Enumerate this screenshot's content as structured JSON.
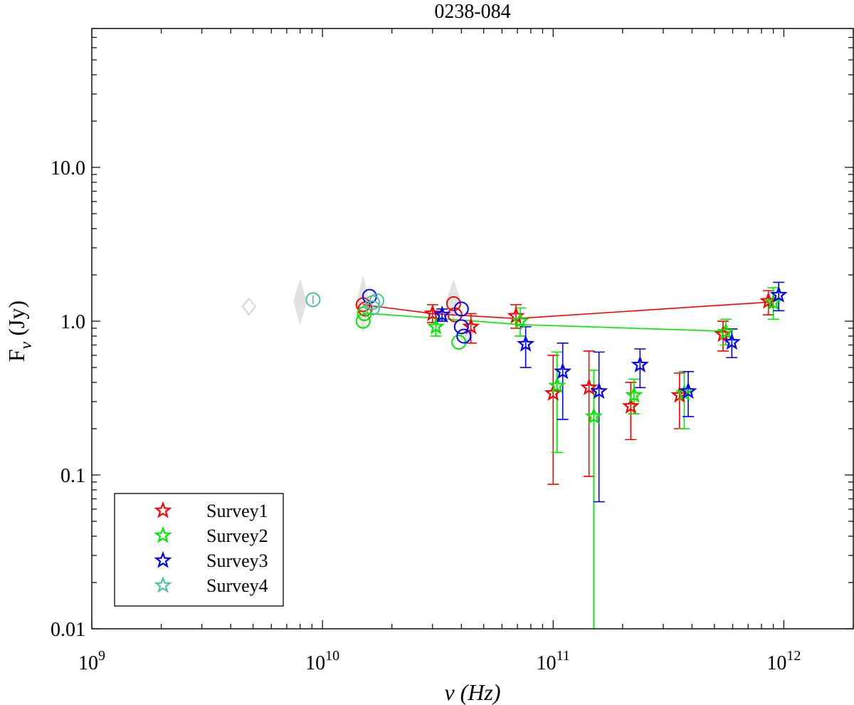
{
  "chart_data": {
    "type": "scatter",
    "title": "0238-084",
    "xlabel": "ν (Hz)",
    "ylabel_main": "F",
    "ylabel_sub": "ν",
    "ylabel_units": "(Jy)",
    "xscale": "log",
    "yscale": "log",
    "xlim": [
      1000000000.0,
      2000000000000.0
    ],
    "ylim": [
      0.01,
      80
    ],
    "x_ticks": [
      {
        "value": 1000000000.0,
        "base": "10",
        "exp": "9"
      },
      {
        "value": 10000000000.0,
        "base": "10",
        "exp": "10"
      },
      {
        "value": 100000000000.0,
        "base": "10",
        "exp": "11"
      },
      {
        "value": 1000000000000.0,
        "base": "10",
        "exp": "12"
      }
    ],
    "y_ticks": [
      {
        "value": 0.01,
        "label": "0.01"
      },
      {
        "value": 0.1,
        "label": "0.1"
      },
      {
        "value": 1,
        "label": "1.0"
      },
      {
        "value": 10,
        "label": "10.0"
      }
    ],
    "legend_position": "bottom-left",
    "background_points": [
      {
        "x": 4800000000.0,
        "y": 1.25,
        "ylo": 1.1,
        "yhi": 1.4,
        "filled": false
      },
      {
        "x": 8000000000.0,
        "y": 1.35,
        "ylo": 0.95,
        "yhi": 1.85,
        "filled": true
      },
      {
        "x": 15000000000.0,
        "y": 1.3,
        "ylo": 0.85,
        "yhi": 1.95,
        "filled": true
      },
      {
        "x": 37000000000.0,
        "y": 1.4,
        "ylo": 1.0,
        "yhi": 1.85,
        "filled": true
      },
      {
        "x": 42000000000.0,
        "y": 0.8,
        "ylo": 0.7,
        "yhi": 0.9,
        "filled": true
      }
    ],
    "series": [
      {
        "name": "Survey1",
        "color": "#ff0000",
        "stars": [
          {
            "x": 30000000000.0,
            "y": 1.12,
            "ylo": 0.98,
            "yhi": 1.28
          },
          {
            "x": 44000000000.0,
            "y": 0.92,
            "ylo": 0.72,
            "yhi": 1.12
          },
          {
            "x": 69000000000.0,
            "y": 1.08,
            "ylo": 0.9,
            "yhi": 1.28
          },
          {
            "x": 100000000000.0,
            "y": 0.34,
            "ylo": 0.087,
            "yhi": 0.6
          },
          {
            "x": 143000000000.0,
            "y": 0.37,
            "ylo": 0.098,
            "yhi": 0.64
          },
          {
            "x": 217000000000.0,
            "y": 0.28,
            "ylo": 0.17,
            "yhi": 0.4
          },
          {
            "x": 353000000000.0,
            "y": 0.33,
            "ylo": 0.2,
            "yhi": 0.46
          },
          {
            "x": 545000000000.0,
            "y": 0.82,
            "ylo": 0.64,
            "yhi": 1.0
          },
          {
            "x": 857000000000.0,
            "y": 1.35,
            "ylo": 1.1,
            "yhi": 1.58
          }
        ],
        "circles": [
          {
            "x": 15000000000.0,
            "y": 1.28
          },
          {
            "x": 15300000000.0,
            "y": 1.2
          },
          {
            "x": 37000000000.0,
            "y": 1.3
          },
          {
            "x": 37500000000.0,
            "y": 1.1
          }
        ],
        "line": [
          {
            "x": 15000000000.0,
            "y": 1.28
          },
          {
            "x": 30000000000.0,
            "y": 1.12
          },
          {
            "x": 69000000000.0,
            "y": 1.04
          },
          {
            "x": 857000000000.0,
            "y": 1.33
          }
        ]
      },
      {
        "name": "Survey2",
        "color": "#00e800",
        "stars": [
          {
            "x": 31000000000.0,
            "y": 0.92,
            "ylo": 0.8,
            "yhi": 1.05
          },
          {
            "x": 72000000000.0,
            "y": 1.0,
            "ylo": 0.8,
            "yhi": 1.22
          },
          {
            "x": 104000000000.0,
            "y": 0.38,
            "ylo": 0.14,
            "yhi": 0.63
          },
          {
            "x": 150000000000.0,
            "y": 0.24,
            "ylo": 0.005,
            "yhi": 0.48
          },
          {
            "x": 224000000000.0,
            "y": 0.33,
            "ylo": 0.25,
            "yhi": 0.42
          },
          {
            "x": 370000000000.0,
            "y": 0.34,
            "ylo": 0.2,
            "yhi": 0.47
          },
          {
            "x": 560000000000.0,
            "y": 0.85,
            "ylo": 0.7,
            "yhi": 1.03
          },
          {
            "x": 900000000000.0,
            "y": 1.32,
            "ylo": 1.03,
            "yhi": 1.65
          }
        ],
        "circles": [
          {
            "x": 15000000000.0,
            "y": 1.0
          },
          {
            "x": 15200000000.0,
            "y": 1.12
          },
          {
            "x": 39000000000.0,
            "y": 0.73
          }
        ],
        "line": [
          {
            "x": 15000000000.0,
            "y": 1.13
          },
          {
            "x": 39000000000.0,
            "y": 1.02
          },
          {
            "x": 72000000000.0,
            "y": 0.95
          },
          {
            "x": 560000000000.0,
            "y": 0.86
          }
        ]
      },
      {
        "name": "Survey3",
        "color": "#0000ff",
        "stars": [
          {
            "x": 33000000000.0,
            "y": 1.1,
            "ylo": 1.0,
            "yhi": 1.2
          },
          {
            "x": 76000000000.0,
            "y": 0.71,
            "ylo": 0.5,
            "yhi": 0.92
          },
          {
            "x": 110000000000.0,
            "y": 0.47,
            "ylo": 0.23,
            "yhi": 0.72
          },
          {
            "x": 158000000000.0,
            "y": 0.35,
            "ylo": 0.067,
            "yhi": 0.63
          },
          {
            "x": 238000000000.0,
            "y": 0.52,
            "ylo": 0.37,
            "yhi": 0.66
          },
          {
            "x": 385000000000.0,
            "y": 0.35,
            "ylo": 0.24,
            "yhi": 0.47
          },
          {
            "x": 595000000000.0,
            "y": 0.73,
            "ylo": 0.58,
            "yhi": 0.89
          },
          {
            "x": 950000000000.0,
            "y": 1.48,
            "ylo": 1.17,
            "yhi": 1.79
          }
        ],
        "circles": [
          {
            "x": 16000000000.0,
            "y": 1.45
          },
          {
            "x": 40000000000.0,
            "y": 1.2
          },
          {
            "x": 40000000000.0,
            "y": 0.92
          },
          {
            "x": 41000000000.0,
            "y": 0.8
          }
        ],
        "line": []
      },
      {
        "name": "Survey4",
        "color": "#4fc0a6",
        "stars": [],
        "circles": [
          {
            "x": 9100000000.0,
            "y": 1.38
          },
          {
            "x": 16500000000.0,
            "y": 1.32
          },
          {
            "x": 17200000000.0,
            "y": 1.36
          },
          {
            "x": 16500000000.0,
            "y": 1.22
          }
        ],
        "line": []
      }
    ]
  }
}
